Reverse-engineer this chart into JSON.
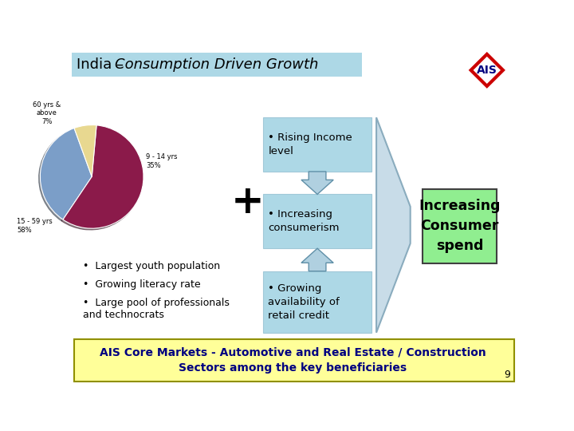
{
  "title_prefix": "India – ",
  "title_italic": "Consumption Driven Growth",
  "title_bg": "#add8e6",
  "title_color": "#000000",
  "bg_color": "#ffffff",
  "pie_values": [
    35,
    58,
    7
  ],
  "pie_colors": [
    "#7b9ec8",
    "#8b1a4a",
    "#e8d890"
  ],
  "box_color": "#add8e6",
  "box_texts": [
    "• Rising Income\nlevel",
    "• Increasing\nconsumerism",
    "• Growing\navailability of\nretail credit"
  ],
  "arrow_color": "#b0d0e0",
  "funnel_color": "#c8dce8",
  "funnel_edge": "#8ab0c0",
  "result_box_color": "#90ee90",
  "result_text": "Increasing\nConsumer\nspend",
  "bullet_points": [
    "Largest youth population",
    "Growing literacy rate",
    "Large pool of professionals\nand technocrats"
  ],
  "footer_text": "AIS Core Markets - Automotive and Real Estate / Construction\nSectors among the key beneficiaries",
  "footer_bg": "#ffff99",
  "footer_color": "#000080",
  "page_num": "9",
  "diamond_fill": "#ffffff",
  "diamond_edge": "#cc0000",
  "ais_text_color": "#000080"
}
